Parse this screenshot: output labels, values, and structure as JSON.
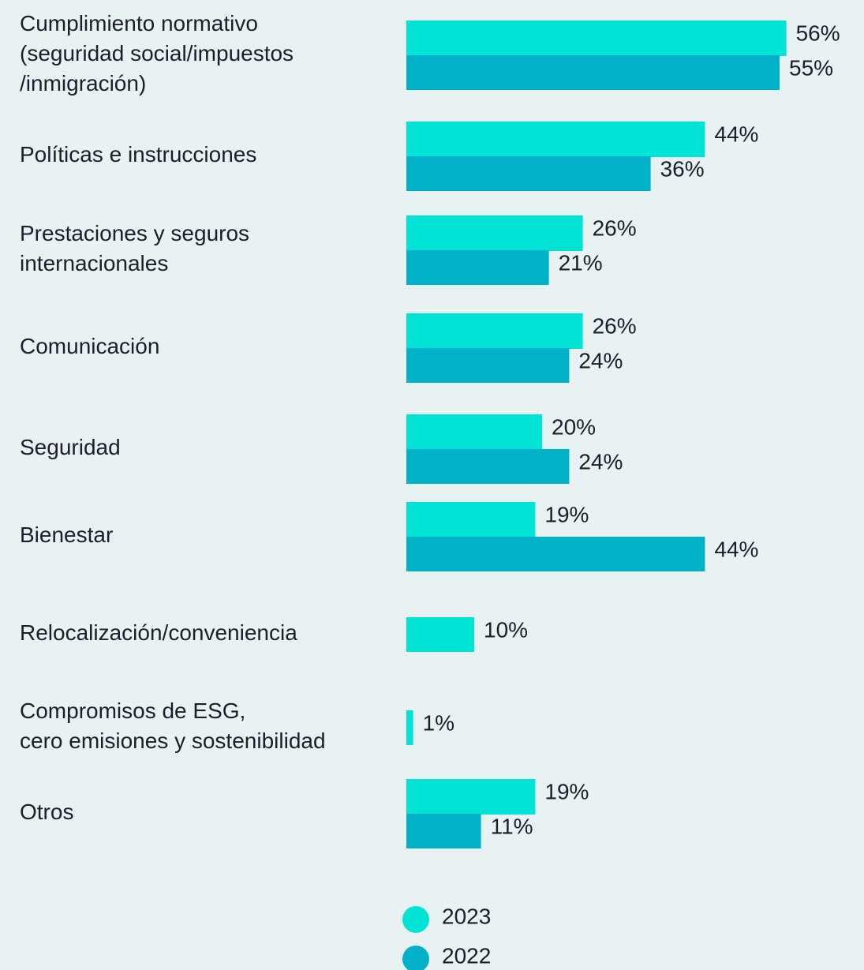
{
  "chart_data": {
    "type": "barh",
    "categories": [
      "Cumplimiento normativo\n(seguridad social/impuestos\n/inmigración)",
      "Políticas e instrucciones",
      "Prestaciones y seguros\ninternacionales",
      "Comunicación",
      "Seguridad",
      "Bienestar",
      "Relocalización/conveniencia",
      "Compromisos de ESG,\ncero emisiones y sostenibilidad",
      "Otros"
    ],
    "series": [
      {
        "name": "2023",
        "color": "#00e3d5",
        "values": [
          56,
          44,
          26,
          26,
          20,
          19,
          10,
          1,
          19
        ],
        "value_labels": [
          "56%",
          "44%",
          "26%",
          "26%",
          "20%",
          "19%",
          "10%",
          "1%",
          "19%"
        ]
      },
      {
        "name": "2022",
        "color": "#00b1c7",
        "values": [
          55,
          36,
          21,
          24,
          24,
          44,
          null,
          null,
          11
        ],
        "value_labels": [
          "55%",
          "36%",
          "21%",
          "24%",
          "24%",
          "44%",
          null,
          null,
          "11%"
        ]
      }
    ],
    "legend": "bottom"
  }
}
